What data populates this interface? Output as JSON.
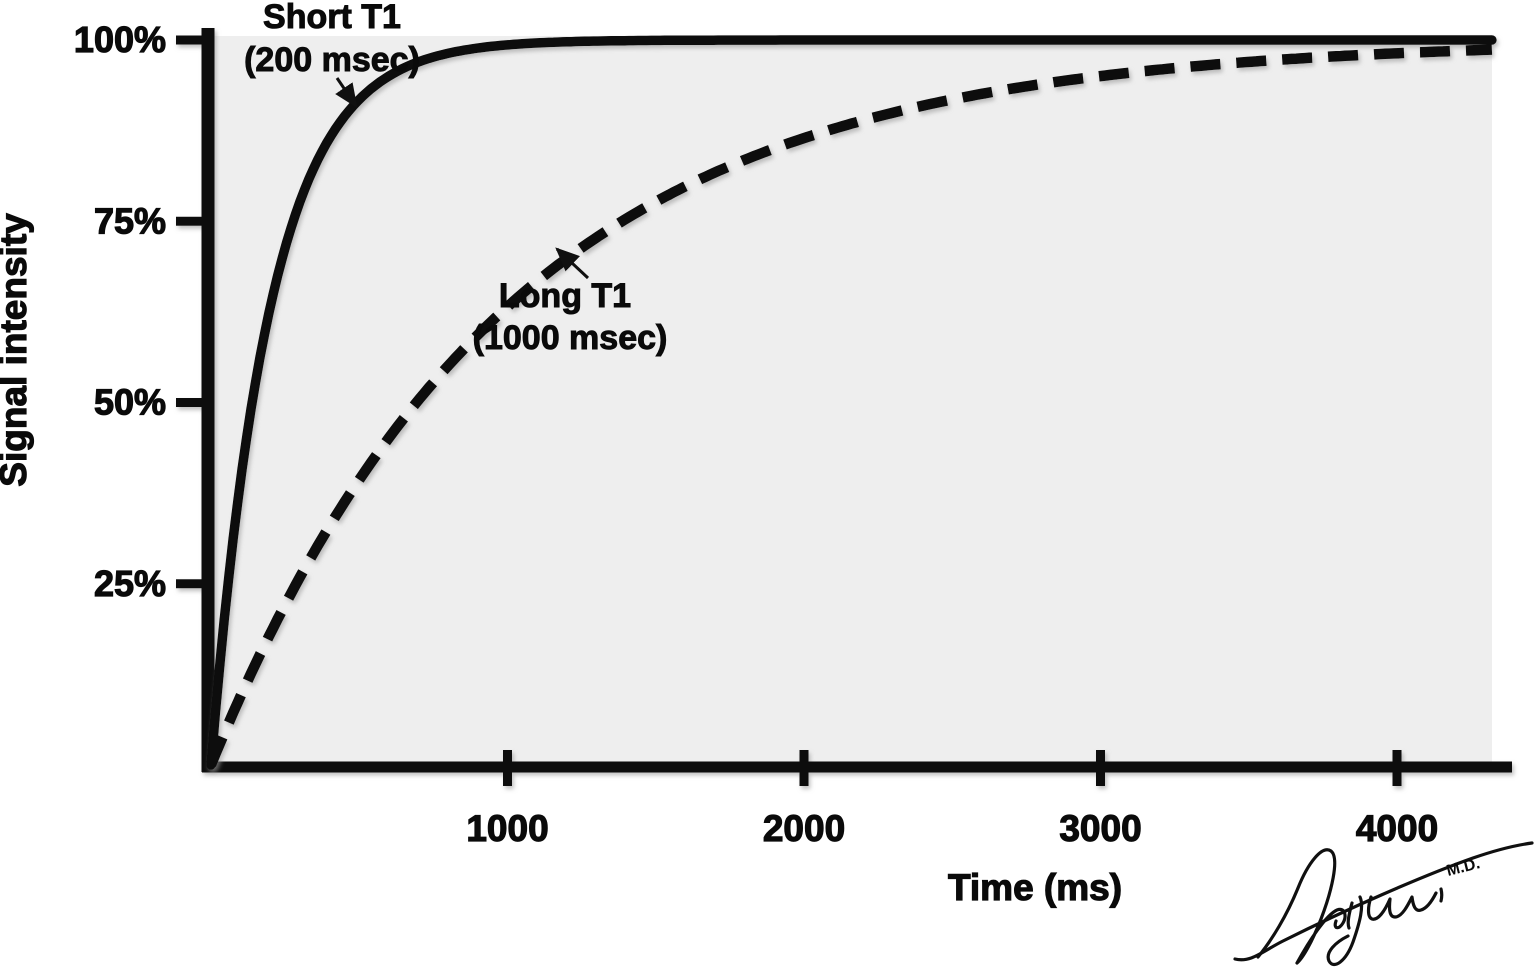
{
  "figure": {
    "background": "#ffffff",
    "plot_background": "#eeeeee",
    "ink_color": "#0a0a0a",
    "y_axis": {
      "title": "Signal intensity",
      "ticks": [
        {
          "label": "100%",
          "value": 100
        },
        {
          "label": "75%",
          "value": 75
        },
        {
          "label": "50%",
          "value": 50
        },
        {
          "label": "25%",
          "value": 25
        }
      ]
    },
    "x_axis": {
      "title": "Time (ms)",
      "ticks": [
        {
          "label": "1000",
          "value": 1000
        },
        {
          "label": "2000",
          "value": 2000
        },
        {
          "label": "3000",
          "value": 3000
        },
        {
          "label": "4000",
          "value": 4000
        }
      ]
    },
    "annotations": [
      {
        "id": "short-t1",
        "line1": "Short T1",
        "line2": "(200 msec)"
      },
      {
        "id": "long-t1",
        "line1": "Long T1",
        "line2": "(1000 msec)"
      }
    ],
    "signature": {
      "name": "Alijani",
      "credential": "M.D."
    }
  },
  "chart_data": {
    "type": "line",
    "xlabel": "Time (ms)",
    "ylabel": "Signal intensity",
    "xlim": [
      0,
      4320
    ],
    "ylim": [
      0,
      100
    ],
    "x_ticks": [
      1000,
      2000,
      3000,
      4000
    ],
    "y_ticks_percent": [
      25,
      50,
      75,
      100
    ],
    "grid": false,
    "legend": "inline-arrow-annotations",
    "series": [
      {
        "name": "Short T1 (200 msec)",
        "t1_ms": 200,
        "line_style": "solid",
        "points": [
          {
            "t_ms": 0,
            "signal_pct": 0
          },
          {
            "t_ms": 200,
            "signal_pct": 63
          },
          {
            "t_ms": 400,
            "signal_pct": 86
          },
          {
            "t_ms": 600,
            "signal_pct": 95
          },
          {
            "t_ms": 800,
            "signal_pct": 98
          },
          {
            "t_ms": 1000,
            "signal_pct": 99
          },
          {
            "t_ms": 2000,
            "signal_pct": 100
          },
          {
            "t_ms": 3000,
            "signal_pct": 100
          },
          {
            "t_ms": 4000,
            "signal_pct": 100
          }
        ]
      },
      {
        "name": "Long T1 (1000 msec)",
        "t1_ms": 1000,
        "line_style": "dashed",
        "points": [
          {
            "t_ms": 0,
            "signal_pct": 0
          },
          {
            "t_ms": 500,
            "signal_pct": 39
          },
          {
            "t_ms": 1000,
            "signal_pct": 63
          },
          {
            "t_ms": 1500,
            "signal_pct": 78
          },
          {
            "t_ms": 2000,
            "signal_pct": 86
          },
          {
            "t_ms": 2500,
            "signal_pct": 92
          },
          {
            "t_ms": 3000,
            "signal_pct": 95
          },
          {
            "t_ms": 3500,
            "signal_pct": 97
          },
          {
            "t_ms": 4000,
            "signal_pct": 98
          }
        ]
      }
    ]
  }
}
